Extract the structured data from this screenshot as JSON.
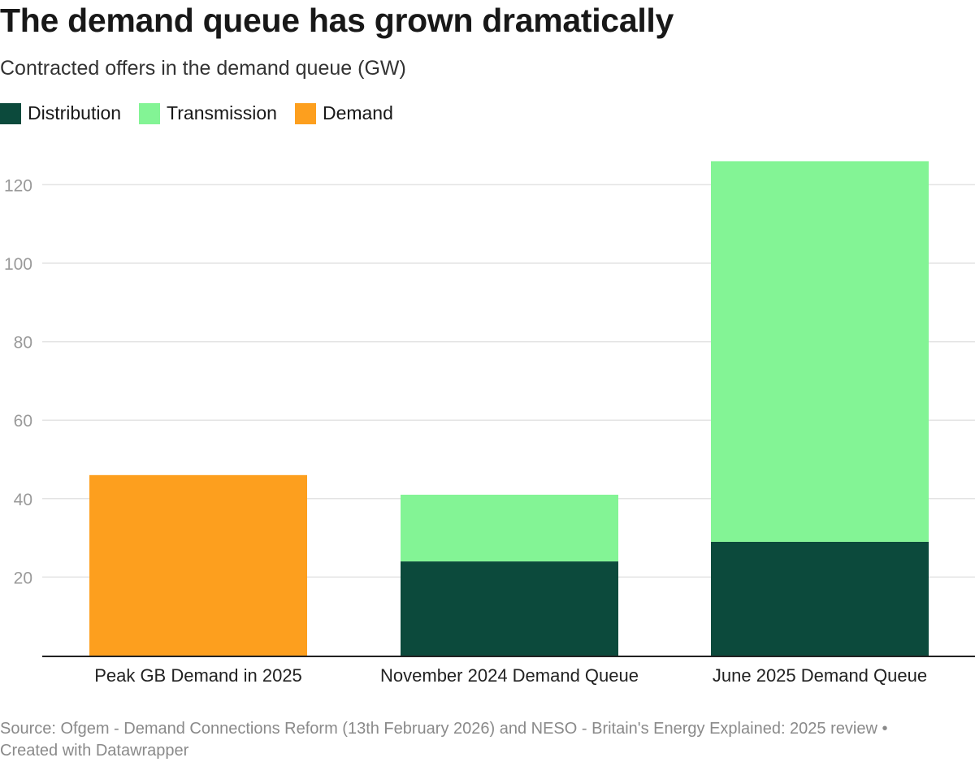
{
  "title": "The demand queue has grown dramatically",
  "subtitle": "Contracted offers in the demand queue (GW)",
  "source": "Source: Ofgem - Demand Connections Reform (13th February 2026) and NESO - Britain's Energy Explained: 2025 review •",
  "credit": "Created with Datawrapper",
  "chart_data": {
    "type": "bar",
    "stacked": true,
    "categories": [
      "Peak GB Demand in 2025",
      "November 2024 Demand Queue",
      "June 2025 Demand Queue"
    ],
    "series": [
      {
        "name": "Distribution",
        "color": "#0c4a3c",
        "values": [
          0,
          24,
          29
        ]
      },
      {
        "name": "Transmission",
        "color": "#83f495",
        "values": [
          0,
          17,
          97
        ]
      },
      {
        "name": "Demand",
        "color": "#fd9f1e",
        "values": [
          46,
          0,
          0
        ]
      }
    ],
    "ylim": [
      0,
      126
    ],
    "yticks": [
      20,
      40,
      60,
      80,
      100,
      120
    ],
    "grid": true,
    "legend": "top-left",
    "xlabel": "",
    "ylabel": ""
  }
}
